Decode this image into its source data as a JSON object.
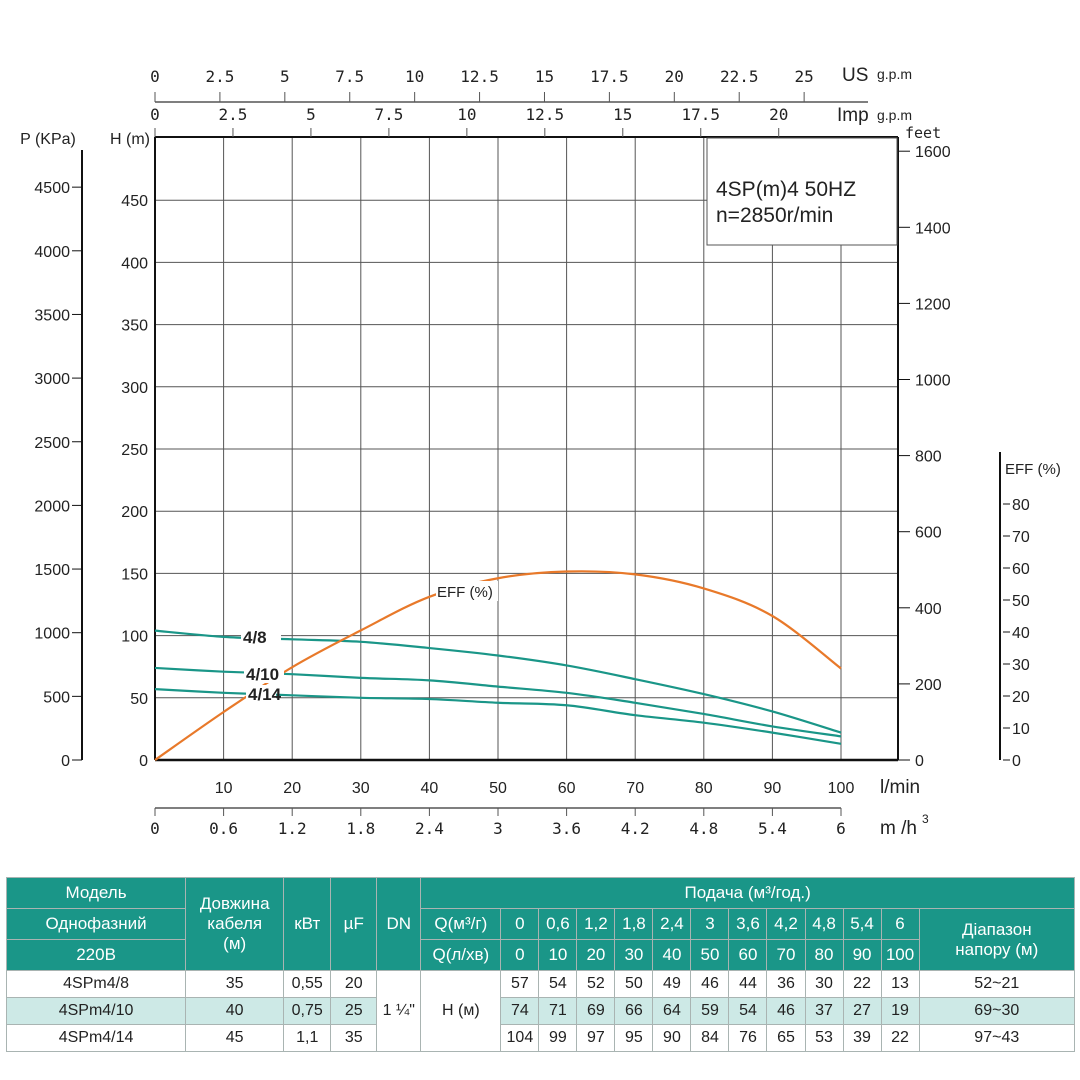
{
  "chart_data": {
    "type": "line",
    "title": "4SP(m)4  50HZ",
    "subtitle": "n=2850r/min",
    "xlabel": "l/min",
    "xlabel_m3h": "m /h",
    "xlabel_m3h_sup": "3",
    "ylabel_left": "H (m)",
    "ylabel_pressure": "P (KPa)",
    "ylabel_feet": "feet",
    "ylabel_eff": "EFF (%)",
    "top_axis_us": "US",
    "top_axis_imp": "Imp",
    "gpm_unit": "g.p.m",
    "xlim": [
      0,
      100
    ],
    "ylim": [
      0,
      500
    ],
    "grid": true,
    "x_ticks": [
      10,
      20,
      30,
      40,
      50,
      60,
      70,
      80,
      90,
      100
    ],
    "m3h_ticks": [
      "0",
      "0.6",
      "1.2",
      "1.8",
      "2.4",
      "3",
      "3.6",
      "4.2",
      "4.8",
      "5.4",
      "6"
    ],
    "us_gpm_ticks": [
      "0",
      "2.5",
      "5",
      "7.5",
      "10",
      "12.5",
      "15",
      "17.5",
      "20",
      "22.5",
      "25"
    ],
    "imp_gpm_ticks": [
      "0",
      "2.5",
      "5",
      "7.5",
      "10",
      "12.5",
      "15",
      "17.5",
      "20"
    ],
    "h_ticks": [
      0,
      50,
      100,
      150,
      200,
      250,
      300,
      350,
      400,
      450
    ],
    "p_ticks": [
      0,
      500,
      1000,
      1500,
      2000,
      2500,
      3000,
      3500,
      4000,
      4500
    ],
    "feet_ticks": [
      0,
      200,
      400,
      600,
      800,
      1000,
      1200,
      1400,
      1600
    ],
    "eff_ticks": [
      0,
      10,
      20,
      30,
      40,
      50,
      60,
      70,
      80
    ],
    "x": [
      0,
      10,
      20,
      30,
      40,
      50,
      60,
      70,
      80,
      90,
      100
    ],
    "series": [
      {
        "name": "4/8",
        "axis": "H",
        "values": [
          57,
          54,
          52,
          50,
          49,
          46,
          44,
          36,
          30,
          22,
          13
        ]
      },
      {
        "name": "4/10",
        "axis": "H",
        "values": [
          74,
          71,
          69,
          66,
          64,
          59,
          54,
          46,
          37,
          27,
          19
        ]
      },
      {
        "name": "4/14",
        "axis": "H",
        "values": [
          104,
          99,
          97,
          95,
          90,
          84,
          76,
          65,
          53,
          39,
          22
        ]
      },
      {
        "name": "EFF (%)",
        "axis": "EFF",
        "values": [
          0,
          15,
          29,
          40.5,
          51,
          56.8,
          58.9,
          58,
          53.6,
          45,
          28.6
        ]
      }
    ],
    "colors": {
      "head": "#1a9688",
      "eff": "#e8792a",
      "grid": "#555555"
    }
  },
  "table": {
    "h_model": "Модель",
    "h_phase": "Однофазний",
    "h_voltage": "220В",
    "h_cable": [
      "Довжина",
      "кабеля",
      "(м)"
    ],
    "h_kw": "кВт",
    "h_uf": "µF",
    "h_dn": "DN",
    "h_flow": "Подача (м³/год.)",
    "h_q_m3": "Q(м³/г)",
    "h_q_lmin": "Q(л/хв)",
    "h_range": [
      "Діапазон",
      "напору (м)"
    ],
    "q_m3": [
      "0",
      "0,6",
      "1,2",
      "1,8",
      "2,4",
      "3",
      "3,6",
      "4,2",
      "4,8",
      "5,4",
      "6"
    ],
    "q_lmin": [
      "0",
      "10",
      "20",
      "30",
      "40",
      "50",
      "60",
      "70",
      "80",
      "90",
      "100"
    ],
    "dn": "1 ¼\"",
    "h_label": "H (м)",
    "rows": [
      {
        "model": "4SPm4/8",
        "cable": "35",
        "kw": "0,55",
        "uf": "20",
        "h": [
          "57",
          "54",
          "52",
          "50",
          "49",
          "46",
          "44",
          "36",
          "30",
          "22",
          "13"
        ],
        "range": "52~21"
      },
      {
        "model": "4SPm4/10",
        "cable": "40",
        "kw": "0,75",
        "uf": "25",
        "h": [
          "74",
          "71",
          "69",
          "66",
          "64",
          "59",
          "54",
          "46",
          "37",
          "27",
          "19"
        ],
        "range": "69~30"
      },
      {
        "model": "4SPm4/14",
        "cable": "45",
        "kw": "1,1",
        "uf": "35",
        "h": [
          "104",
          "99",
          "97",
          "95",
          "90",
          "84",
          "76",
          "65",
          "53",
          "39",
          "22"
        ],
        "range": "97~43"
      }
    ]
  }
}
